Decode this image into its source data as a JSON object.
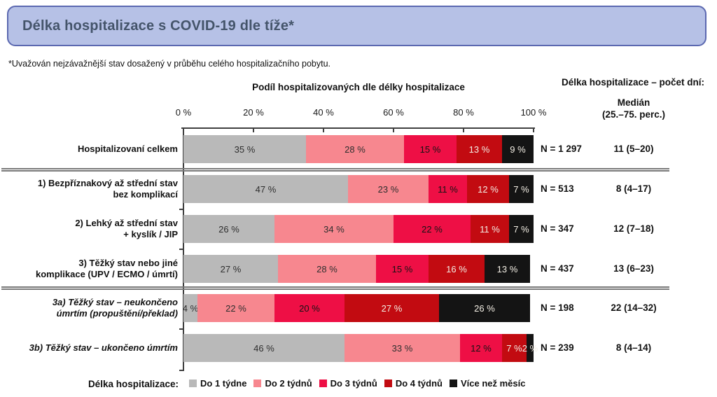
{
  "header": {
    "title": "Délka hospitalizace s COVID-19 dle tíže*",
    "box_fill": "#b6c1e6",
    "box_border": "#5b68b0",
    "title_color": "#44546a"
  },
  "footnote": "*Uvažován nejzávažnější stav dosažený v průběhu celého hospitalizačního pobytu.",
  "chart_data": {
    "type": "bar",
    "stacked": true,
    "orientation": "horizontal",
    "title": "Podíl hospitalizovaných dle délky hospitalizace",
    "right_header": "Délka hospitalizace – počet dní:",
    "median_header": {
      "line1": "Medián",
      "line2": "(25.–75. perc.)"
    },
    "x_axis": {
      "ticks": [
        "0 %",
        "20 %",
        "40 %",
        "60 %",
        "80 %",
        "100 %"
      ],
      "range": [
        0,
        100
      ],
      "unit": "%"
    },
    "series": [
      "Do 1 týdne",
      "Do 2 týdnů",
      "Do 3 týdnů",
      "Do 4 týdnů",
      "Více než měsíc"
    ],
    "series_colors": [
      "#b9b9b9",
      "#f7878f",
      "#ee0f45",
      "#c20b11",
      "#141414"
    ],
    "segment_label_colors": [
      "#2e2e2e",
      "#2e2e2e",
      "#141414",
      "#f3eee4",
      "#f3eee4"
    ],
    "rows": [
      {
        "label_lines": [
          "Hospitalizovaní celkem"
        ],
        "italic": false,
        "values": [
          35,
          28,
          15,
          13,
          9
        ],
        "value_labels": [
          "35 %",
          "28 %",
          "15 %",
          "13 %",
          "9 %"
        ],
        "n": 1297,
        "n_label": "N = 1 297",
        "median": 11,
        "p25": 5,
        "p75": 20,
        "median_label": "11 (5–20)"
      },
      {
        "label_lines": [
          "1) Bezpříznakový až střední stav",
          "bez komplikací"
        ],
        "italic": false,
        "values": [
          47,
          23,
          11,
          12,
          7
        ],
        "value_labels": [
          "47 %",
          "23 %",
          "11 %",
          "12 %",
          "7 %"
        ],
        "n": 513,
        "n_label": "N = 513",
        "median": 8,
        "p25": 4,
        "p75": 17,
        "median_label": "8 (4–17)"
      },
      {
        "label_lines": [
          "2) Lehký až střední stav",
          "+ kyslík / JIP"
        ],
        "italic": false,
        "values": [
          26,
          34,
          22,
          11,
          7
        ],
        "value_labels": [
          "26 %",
          "34 %",
          "22 %",
          "11 %",
          "7 %"
        ],
        "n": 347,
        "n_label": "N = 347",
        "median": 12,
        "p25": 7,
        "p75": 18,
        "median_label": "12 (7–18)"
      },
      {
        "label_lines": [
          "3) Těžký stav nebo jiné",
          "komplikace (UPV / ECMO / úmrtí)"
        ],
        "italic": false,
        "values": [
          27,
          28,
          15,
          16,
          13
        ],
        "value_labels": [
          "27 %",
          "28 %",
          "15 %",
          "16 %",
          "13 %"
        ],
        "n": 437,
        "n_label": "N = 437",
        "median": 13,
        "p25": 6,
        "p75": 23,
        "median_label": "13 (6–23)"
      },
      {
        "label_lines": [
          "3a) Těžký stav – neukončeno",
          "úmrtím (propuštění/překlad)"
        ],
        "italic": true,
        "values": [
          4,
          22,
          20,
          27,
          26
        ],
        "value_labels": [
          "4 %",
          "22 %",
          "20 %",
          "27 %",
          "26 %"
        ],
        "n": 198,
        "n_label": "N = 198",
        "median": 22,
        "p25": 14,
        "p75": 32,
        "median_label": "22 (14–32)"
      },
      {
        "label_lines": [
          "3b) Těžký stav – ukončeno úmrtím"
        ],
        "italic": true,
        "values": [
          46,
          33,
          12,
          7,
          2
        ],
        "value_labels": [
          "46 %",
          "33 %",
          "12 %",
          "7 %",
          "2 %"
        ],
        "n": 239,
        "n_label": "N = 239",
        "median": 8,
        "p25": 4,
        "p75": 14,
        "median_label": "8 (4–14)"
      }
    ],
    "legend": {
      "title": "Délka hospitalizace:"
    }
  }
}
